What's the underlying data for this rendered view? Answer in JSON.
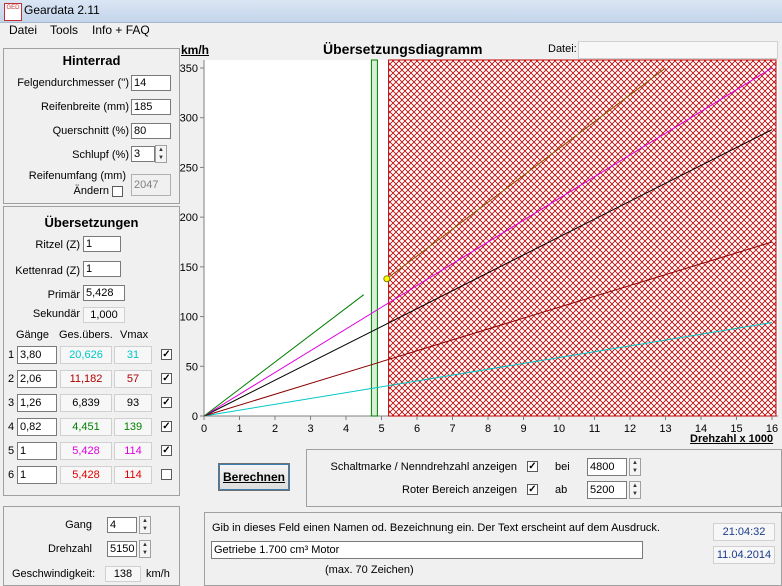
{
  "window": {
    "title": "Geardata 2.11",
    "icon_text": "GED"
  },
  "menu": [
    "Datei",
    "Tools",
    "Info + FAQ"
  ],
  "hinterrad": {
    "title": "Hinterrad",
    "felgen_label": "Felgendurchmesser ('')",
    "felgen_value": "14",
    "breite_label": "Reifenbreite (mm)",
    "breite_value": "185",
    "quer_label": "Querschnitt (%)",
    "quer_value": "80",
    "schlupf_label": "Schlupf (%)",
    "schlupf_value": "3",
    "umfang_label": "Reifenumfang (mm)",
    "aendern_label": "Ändern",
    "umfang_value": "2047"
  },
  "uebersetzungen": {
    "title": "Übersetzungen",
    "ritzel_label": "Ritzel (Z)",
    "ritzel_value": "1",
    "kettenrad_label": "Kettenrad (Z)",
    "kettenrad_value": "1",
    "primaer_label": "Primär",
    "primaer_value": "5,428",
    "sekundaer_label": "Sekundär",
    "sekundaer_value": "1,000",
    "col_gaenge": "Gänge",
    "col_ges": "Ges.übers.",
    "col_vmax": "Vmax",
    "gears": [
      {
        "num": "1",
        "ratio": "3,80",
        "total": "20,626",
        "vmax": "31",
        "checked": true,
        "color": "#00c8c8"
      },
      {
        "num": "2",
        "ratio": "2,06",
        "total": "11,182",
        "vmax": "57",
        "checked": true,
        "color": "#b00000"
      },
      {
        "num": "3",
        "ratio": "1,26",
        "total": "6,839",
        "vmax": "93",
        "checked": true,
        "color": "#000000"
      },
      {
        "num": "4",
        "ratio": "0,82",
        "total": "4,451",
        "vmax": "139",
        "checked": true,
        "color": "#008000"
      },
      {
        "num": "5",
        "ratio": "1",
        "total": "5,428",
        "vmax": "114",
        "checked": true,
        "color": "#e000e0"
      },
      {
        "num": "6",
        "ratio": "1",
        "total": "5,428",
        "vmax": "114",
        "checked": false,
        "color": "#e00000"
      }
    ]
  },
  "calc": {
    "gang_label": "Gang",
    "gang_value": "4",
    "drehzahl_label": "Drehzahl",
    "drehzahl_value": "5150",
    "geschw_label": "Geschwindigkeit:",
    "geschw_value": "138",
    "geschw_unit": "km/h"
  },
  "chart_header": {
    "unit": "km/h",
    "title": "Übersetzungsdiagramm",
    "datei_label": "Datei:",
    "datei_value": ""
  },
  "chart_data": {
    "type": "line",
    "title": "Übersetzungsdiagramm",
    "xlabel": "Drehzahl x 1000",
    "ylabel": "km/h",
    "xlim": [
      0,
      16
    ],
    "ylim": [
      0,
      350
    ],
    "xticks": [
      0,
      1,
      2,
      3,
      4,
      5,
      6,
      7,
      8,
      9,
      10,
      11,
      12,
      13,
      14,
      15,
      16
    ],
    "yticks": [
      0,
      50,
      100,
      150,
      200,
      250,
      300,
      350
    ],
    "series": [
      {
        "color": "#00c8c8",
        "points": [
          [
            0,
            0
          ],
          [
            16,
            94
          ]
        ]
      },
      {
        "color": "#8b0000",
        "points": [
          [
            0,
            0
          ],
          [
            16,
            175
          ]
        ]
      },
      {
        "color": "#000000",
        "points": [
          [
            0,
            0
          ],
          [
            16,
            288
          ]
        ]
      },
      {
        "color": "#e000e0",
        "points": [
          [
            0,
            0
          ],
          [
            16,
            350
          ]
        ]
      },
      {
        "color": "#008000",
        "points": [
          [
            0,
            0
          ],
          [
            4.5,
            122
          ]
        ]
      },
      {
        "color": "#8b5a00",
        "points": [
          [
            5.15,
            138
          ],
          [
            13.0,
            350
          ]
        ]
      }
    ],
    "marker_point": [
      5.15,
      138
    ],
    "nominal_rpm": 4.8,
    "red_zone_start": 5.2,
    "grid": false
  },
  "options": {
    "berechnen_label": "Berechnen",
    "schalt_label": "Schaltmarke / Nenndrehzahl anzeigen",
    "schalt_checked": true,
    "bei_label": "bei",
    "bei_value": "4800",
    "rot_label": "Roter Bereich anzeigen",
    "rot_checked": true,
    "ab_label": "ab",
    "ab_value": "5200"
  },
  "footer": {
    "hint": "Gib in dieses Feld einen Namen od. Bezeichnung ein. Der Text erscheint auf dem Ausdruck.",
    "name_value": "Getriebe 1.700 cm³ Motor",
    "max_label": "(max. 70 Zeichen)",
    "time": "21:04:32",
    "date": "11.04.2014"
  }
}
